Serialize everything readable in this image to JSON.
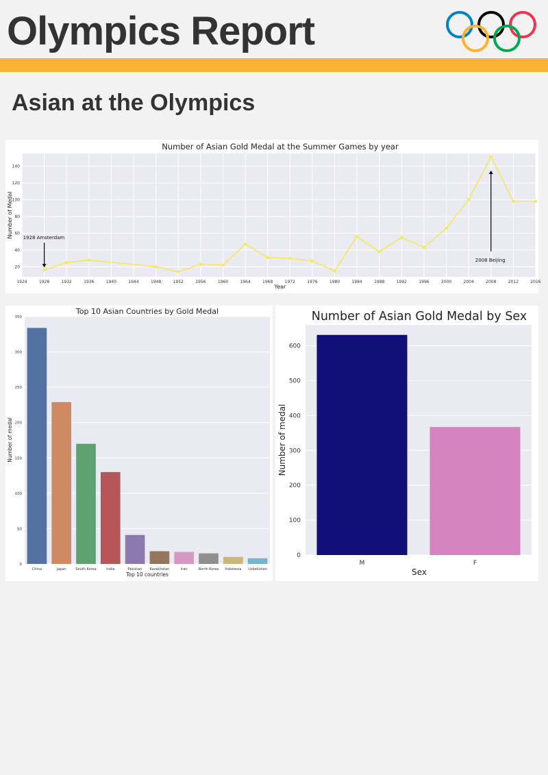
{
  "header": {
    "title": "Olympics Report",
    "section_title": "Asian at the Olympics",
    "accent_color": "#f9b233",
    "logo": "olympic-rings-icon",
    "ring_colors": [
      "#0081c8",
      "#000000",
      "#ee334e",
      "#fcb131",
      "#00a651"
    ]
  },
  "chart_data": [
    {
      "type": "line",
      "title": "Number of Asian Gold Medal at the Summer Games by year",
      "xlabel": "Year",
      "ylabel": "Number of Medal",
      "x_ticks": [
        1924,
        1928,
        1932,
        1936,
        1940,
        1944,
        1948,
        1952,
        1956,
        1960,
        1964,
        1968,
        1972,
        1976,
        1980,
        1984,
        1988,
        1992,
        1996,
        2000,
        2004,
        2008,
        2012,
        2016
      ],
      "x_tick_labels": [
        "1924",
        "1928",
        "1932",
        "1936",
        "1940",
        "1944",
        "1948",
        "1952",
        "1956",
        "1960",
        "1964",
        "1968",
        "1972",
        "1976",
        "1980",
        "1984",
        "1988",
        "1992",
        "1996",
        "2000",
        "2004",
        "2008",
        "2012",
        "2016"
      ],
      "y_ticks": [
        20,
        40,
        60,
        80,
        100,
        120,
        140
      ],
      "xlim": [
        1924,
        2016
      ],
      "ylim": [
        8,
        155
      ],
      "grid": true,
      "color": "#f5e94f",
      "series": [
        {
          "x": [
            1928,
            1932,
            1936,
            1948,
            1952,
            1956,
            1960,
            1964,
            1968,
            1972,
            1976,
            1980,
            1984,
            1988,
            1992,
            1996,
            2000,
            2004,
            2008,
            2012,
            2016
          ],
          "y": [
            16,
            25,
            28,
            20,
            14,
            23,
            22,
            47,
            31,
            30,
            27,
            15,
            56,
            38,
            55,
            43,
            66,
            100,
            151,
            98,
            98
          ]
        }
      ],
      "annotations": [
        {
          "text": "1928 Amsterdam",
          "x": 1928,
          "y": 16
        },
        {
          "text": "2008 Beijing",
          "x": 2008,
          "y": 151
        }
      ]
    },
    {
      "type": "bar",
      "title": "Top 10 Asian Countries by Gold Medal",
      "xlabel": "Top 10 countries",
      "ylabel": "Number of medal",
      "ylim": [
        0,
        350
      ],
      "y_ticks": [
        0,
        50,
        100,
        150,
        200,
        250,
        300,
        350
      ],
      "grid": true,
      "categories": [
        "China",
        "Japan",
        "South Korea",
        "India",
        "Pakistan",
        "Kazakhstan",
        "Iran",
        "North Korea",
        "Indonesia",
        "Uzbekistan"
      ],
      "values": [
        334,
        229,
        170,
        130,
        41,
        18,
        17,
        15,
        10,
        8
      ],
      "colors": [
        "#5471a4",
        "#cf8a63",
        "#5ea06f",
        "#b65658",
        "#8b79b0",
        "#93765d",
        "#d598c2",
        "#8f8f8f",
        "#c9b77c",
        "#77b3cc"
      ]
    },
    {
      "type": "bar",
      "title": "Number of Asian Gold Medal by Sex",
      "xlabel": "Sex",
      "ylabel": "Number of medal",
      "ylim": [
        0,
        660
      ],
      "y_ticks": [
        0,
        100,
        200,
        300,
        400,
        500,
        600
      ],
      "grid": true,
      "categories": [
        "M",
        "F"
      ],
      "values": [
        631,
        367
      ],
      "colors": [
        "#0f0f77",
        "#d483c0"
      ]
    }
  ]
}
